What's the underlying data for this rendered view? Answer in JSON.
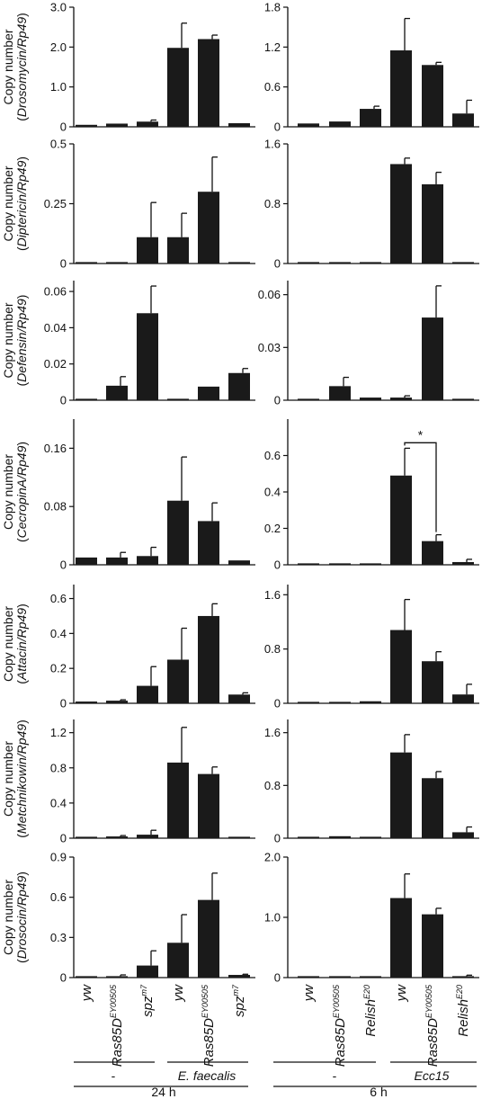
{
  "chart_data": [
    {
      "type": "bar",
      "panel": "Drosomycin 24 h",
      "ylabel": "Copy number",
      "ylabel_gene": "Drosomycin/Rp49",
      "ylim": [
        0,
        3.0
      ],
      "yticks": [
        "0",
        "1.0",
        "2.0",
        "3.0"
      ],
      "ytick_values": [
        0,
        1.0,
        2.0,
        3.0
      ],
      "values": [
        0.05,
        0.08,
        0.13,
        1.98,
        2.2,
        0.09
      ],
      "errors": [
        0,
        0,
        0.04,
        0.62,
        0.1,
        0
      ]
    },
    {
      "type": "bar",
      "panel": "Drosomycin 6 h",
      "ylim": [
        0,
        1.8
      ],
      "yticks": [
        "0",
        "0.6",
        "1.2",
        "1.8"
      ],
      "ytick_values": [
        0,
        0.6,
        1.2,
        1.8
      ],
      "values": [
        0.05,
        0.08,
        0.27,
        1.15,
        0.93,
        0.2
      ],
      "errors": [
        0,
        0,
        0.04,
        0.48,
        0.04,
        0.2
      ]
    },
    {
      "type": "bar",
      "panel": "Diptericin 24 h",
      "ylabel": "Copy number",
      "ylabel_gene": "Diptericin/Rp49",
      "ylim": [
        0,
        0.5
      ],
      "yticks": [
        "0",
        "0.25",
        "0.5"
      ],
      "ytick_values": [
        0,
        0.25,
        0.5
      ],
      "values": [
        0.003,
        0.005,
        0.11,
        0.11,
        0.3,
        0.003
      ],
      "errors": [
        0,
        0,
        0.145,
        0.1,
        0.145,
        0
      ]
    },
    {
      "type": "bar",
      "panel": "Diptericin 6 h",
      "ylim": [
        0,
        1.6
      ],
      "yticks": [
        "0",
        "0.8",
        "1.6"
      ],
      "ytick_values": [
        0,
        0.8,
        1.6
      ],
      "values": [
        0.005,
        0.005,
        0.005,
        1.33,
        1.06,
        0.005
      ],
      "errors": [
        0,
        0,
        0,
        0.08,
        0.16,
        0
      ]
    },
    {
      "type": "bar",
      "panel": "Defensin 24 h",
      "ylabel": "Copy number",
      "ylabel_gene": "Defensin/Rp49",
      "ylim": [
        0,
        0.066
      ],
      "yticks": [
        "0",
        "0.02",
        "0.04",
        "0.06"
      ],
      "ytick_values": [
        0,
        0.02,
        0.04,
        0.06
      ],
      "values": [
        0.0005,
        0.008,
        0.048,
        0.0005,
        0.0075,
        0.015
      ],
      "errors": [
        0,
        0.005,
        0.015,
        0,
        0,
        0.0025
      ]
    },
    {
      "type": "bar",
      "panel": "Defensin 6 h",
      "ylim": [
        0,
        0.068
      ],
      "yticks": [
        "0",
        "0.03",
        "0.06"
      ],
      "ytick_values": [
        0,
        0.03,
        0.06
      ],
      "values": [
        0.0005,
        0.008,
        0.0015,
        0.0015,
        0.047,
        0.0005
      ],
      "errors": [
        0,
        0.005,
        0,
        0.001,
        0.018,
        0
      ]
    },
    {
      "type": "bar",
      "panel": "CecropinA 24 h",
      "ylabel": "Copy number",
      "ylabel_gene": "CecropinA/Rp49",
      "ylim": [
        0,
        0.2
      ],
      "yticks": [
        "0",
        "0.08",
        "0.16"
      ],
      "ytick_values": [
        0,
        0.08,
        0.16
      ],
      "values": [
        0.01,
        0.01,
        0.012,
        0.088,
        0.06,
        0.006
      ],
      "errors": [
        0,
        0.007,
        0.012,
        0.06,
        0.025,
        0
      ]
    },
    {
      "type": "bar",
      "panel": "CecropinA 6 h",
      "ylim": [
        0,
        0.8
      ],
      "yticks": [
        "0",
        "0.2",
        "0.4",
        "0.6"
      ],
      "ytick_values": [
        0,
        0.2,
        0.4,
        0.6
      ],
      "values": [
        0.007,
        0.008,
        0.005,
        0.49,
        0.13,
        0.015
      ],
      "errors": [
        0,
        0,
        0,
        0.15,
        0.035,
        0.015
      ],
      "annotation": "*"
    },
    {
      "type": "bar",
      "panel": "Attacin 24 h",
      "ylabel": "Copy number",
      "ylabel_gene": "Attacin/Rp49",
      "ylim": [
        0,
        0.68
      ],
      "yticks": [
        "0",
        "0.2",
        "0.4",
        "0.6"
      ],
      "ytick_values": [
        0,
        0.2,
        0.4,
        0.6
      ],
      "values": [
        0.01,
        0.015,
        0.1,
        0.25,
        0.5,
        0.05
      ],
      "errors": [
        0,
        0.005,
        0.11,
        0.18,
        0.07,
        0.01
      ]
    },
    {
      "type": "bar",
      "panel": "Attacin 6 h",
      "ylim": [
        0,
        1.75
      ],
      "yticks": [
        "0",
        "0.8",
        "1.6"
      ],
      "ytick_values": [
        0,
        0.8,
        1.6
      ],
      "values": [
        0.005,
        0.02,
        0.03,
        1.08,
        0.62,
        0.13
      ],
      "errors": [
        0,
        0,
        0,
        0.45,
        0.14,
        0.15
      ]
    },
    {
      "type": "bar",
      "panel": "Metchnikowin 24 h",
      "ylabel": "Copy number",
      "ylabel_gene": "Metchnikowin/Rp49",
      "ylim": [
        0,
        1.35
      ],
      "yticks": [
        "0",
        "0.4",
        "0.8",
        "1.2"
      ],
      "ytick_values": [
        0,
        0.4,
        0.8,
        1.2
      ],
      "values": [
        0.01,
        0.02,
        0.04,
        0.86,
        0.73,
        0.005
      ],
      "errors": [
        0,
        0.01,
        0.05,
        0.4,
        0.08,
        0
      ]
    },
    {
      "type": "bar",
      "panel": "Metchnikowin 6 h",
      "ylim": [
        0,
        1.8
      ],
      "yticks": [
        "0",
        "0.8",
        "1.6"
      ],
      "ytick_values": [
        0,
        0.8,
        1.6
      ],
      "values": [
        0.005,
        0.03,
        0.02,
        1.3,
        0.91,
        0.09
      ],
      "errors": [
        0,
        0,
        0,
        0.27,
        0.1,
        0.08
      ]
    },
    {
      "type": "bar",
      "panel": "Drosocin 24 h",
      "ylabel": "Copy number",
      "ylabel_gene": "Drosocin/Rp49",
      "ylim": [
        0,
        0.9
      ],
      "yticks": [
        "0",
        "0.3",
        "0.6",
        "0.9"
      ],
      "ytick_values": [
        0,
        0.3,
        0.6,
        0.9
      ],
      "values": [
        0.005,
        0.01,
        0.09,
        0.26,
        0.58,
        0.02
      ],
      "errors": [
        0,
        0.01,
        0.11,
        0.21,
        0.2,
        0.005
      ]
    },
    {
      "type": "bar",
      "panel": "Drosocin 6 h",
      "ylim": [
        0,
        2.0
      ],
      "yticks": [
        "0",
        "1.0",
        "2.0"
      ],
      "ytick_values": [
        0,
        1.0,
        2.0
      ],
      "values": [
        0.005,
        0.02,
        0.02,
        1.32,
        1.05,
        0.02
      ],
      "errors": [
        0,
        0,
        0,
        0.4,
        0.1,
        0.02
      ]
    }
  ],
  "xaxis": {
    "left": [
      {
        "main": "yw",
        "sup": ""
      },
      {
        "main": "Ras85D",
        "sup": "EY00505"
      },
      {
        "main": "spz",
        "sup": "m7"
      },
      {
        "main": "yw",
        "sup": ""
      },
      {
        "main": "Ras85D",
        "sup": "EY00505"
      },
      {
        "main": "spz",
        "sup": "m7"
      }
    ],
    "right": [
      {
        "main": "yw",
        "sup": ""
      },
      {
        "main": "Ras85D",
        "sup": "EY00505"
      },
      {
        "main": "Relish",
        "sup": "E20"
      },
      {
        "main": "yw",
        "sup": ""
      },
      {
        "main": "Ras85D",
        "sup": "EY00505"
      },
      {
        "main": "Relish",
        "sup": "E20"
      }
    ]
  },
  "groups": {
    "left_control": "-",
    "left_treatment": "E. faecalis",
    "left_time": "24 h",
    "right_control": "-",
    "right_treatment": "Ecc15",
    "right_time": "6 h"
  }
}
